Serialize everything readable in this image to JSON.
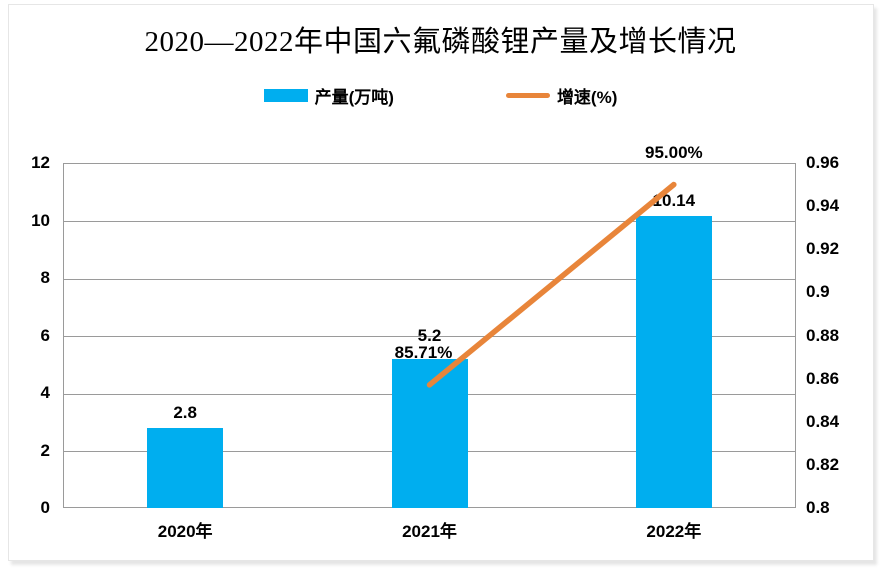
{
  "chart_data": {
    "type": "bar",
    "combo": "bar+line dual-axis",
    "title": "2020—2022年中国六氟磷酸锂产量及增长情况",
    "categories": [
      "2020年",
      "2021年",
      "2022年"
    ],
    "series": [
      {
        "name": "产量(万吨)",
        "type": "bar",
        "axis": "left",
        "values": [
          2.8,
          5.2,
          10.14
        ],
        "labels": [
          "2.8",
          "5.2",
          "10.14"
        ],
        "color": "#00AEEF"
      },
      {
        "name": "增速(%)",
        "type": "line",
        "axis": "right",
        "values": [
          null,
          0.8571,
          0.95
        ],
        "labels": [
          "",
          "85.71%",
          "95.00%"
        ],
        "color": "#E8853A"
      }
    ],
    "left_axis": {
      "min": 0,
      "max": 12,
      "step": 2,
      "ticks": [
        "12",
        "10",
        "8",
        "6",
        "4",
        "2",
        "0"
      ]
    },
    "right_axis": {
      "min": 0.8,
      "max": 0.96,
      "step": 0.02,
      "ticks": [
        "0.96",
        "0.94",
        "0.92",
        "0.9",
        "0.88",
        "0.86",
        "0.84",
        "0.82",
        "0.8"
      ]
    },
    "grid": true,
    "legend_position": "top"
  }
}
